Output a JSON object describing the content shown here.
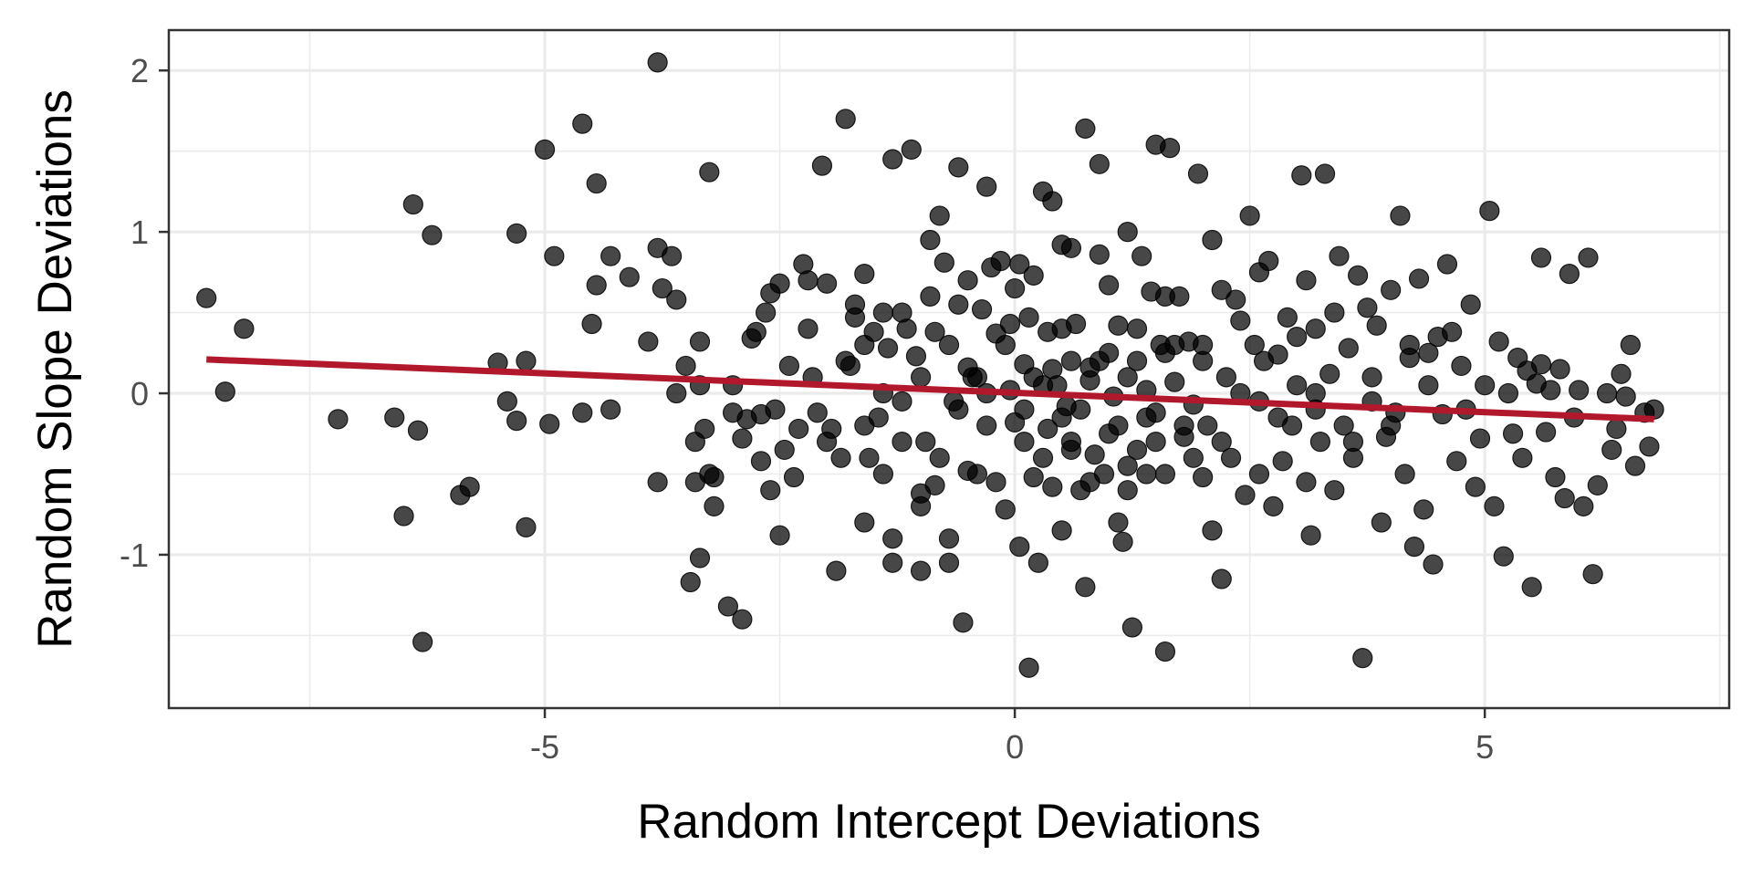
{
  "chart_data": {
    "type": "scatter",
    "title": "",
    "xlabel": "Random Intercept Deviations",
    "ylabel": "Random Slope Deviations",
    "xlim": [
      -9.0,
      7.6
    ],
    "ylim": [
      -1.95,
      2.25
    ],
    "x_ticks": [
      -5,
      0,
      5
    ],
    "x_tick_labels": [
      "-5",
      "0",
      "5"
    ],
    "y_ticks": [
      -1,
      0,
      1,
      2
    ],
    "y_tick_labels": [
      "-1",
      "0",
      "1",
      "2"
    ],
    "grid": true,
    "legend": "none",
    "colors": {
      "points": "#000000",
      "trend_line": "#b2182b",
      "grid": "#ebebeb",
      "panel_border": "#333333"
    },
    "trend_line": {
      "x": [
        -8.6,
        6.8
      ],
      "y": [
        0.21,
        -0.16
      ]
    },
    "points": [
      [
        -8.6,
        0.59
      ],
      [
        -8.4,
        0.01
      ],
      [
        -8.2,
        0.4
      ],
      [
        -7.2,
        -0.16
      ],
      [
        -6.6,
        -0.15
      ],
      [
        -6.5,
        -0.76
      ],
      [
        -6.4,
        1.17
      ],
      [
        -6.35,
        -0.23
      ],
      [
        -6.3,
        -1.54
      ],
      [
        -6.2,
        0.98
      ],
      [
        -5.9,
        -0.63
      ],
      [
        -5.8,
        -0.58
      ],
      [
        -5.5,
        0.19
      ],
      [
        -5.4,
        -0.05
      ],
      [
        -5.2,
        0.2
      ],
      [
        -5.3,
        -0.17
      ],
      [
        -5.3,
        0.99
      ],
      [
        -5.2,
        -0.83
      ],
      [
        -5.0,
        1.51
      ],
      [
        -4.9,
        0.85
      ],
      [
        -4.95,
        -0.19
      ],
      [
        -4.6,
        1.67
      ],
      [
        -4.6,
        -0.12
      ],
      [
        -4.45,
        1.3
      ],
      [
        -4.5,
        0.43
      ],
      [
        -4.45,
        0.67
      ],
      [
        -4.3,
        -0.1
      ],
      [
        -4.3,
        0.85
      ],
      [
        -4.1,
        0.72
      ],
      [
        -3.9,
        0.32
      ],
      [
        -3.8,
        0.9
      ],
      [
        -3.8,
        -0.55
      ],
      [
        -3.75,
        0.65
      ],
      [
        -3.65,
        0.85
      ],
      [
        -3.6,
        0.58
      ],
      [
        -3.8,
        2.05
      ],
      [
        -3.5,
        0.17
      ],
      [
        -3.45,
        -1.17
      ],
      [
        -3.4,
        -0.3
      ],
      [
        -3.35,
        0.32
      ],
      [
        -3.4,
        -0.55
      ],
      [
        -3.35,
        0.05
      ],
      [
        -3.3,
        -0.22
      ],
      [
        -3.25,
        1.37
      ],
      [
        -3.35,
        -1.02
      ],
      [
        -3.25,
        -0.5
      ],
      [
        -3.2,
        -0.7
      ],
      [
        -3.2,
        -0.52
      ],
      [
        -3.05,
        -1.32
      ],
      [
        -3.0,
        -0.12
      ],
      [
        -3.0,
        0.05
      ],
      [
        -2.9,
        -0.28
      ],
      [
        -2.85,
        -0.16
      ],
      [
        -2.8,
        0.34
      ],
      [
        -2.75,
        0.38
      ],
      [
        -2.7,
        -0.42
      ],
      [
        -2.7,
        -0.13
      ],
      [
        -2.65,
        0.5
      ],
      [
        -2.6,
        0.62
      ],
      [
        -2.55,
        -0.1
      ],
      [
        -2.5,
        0.68
      ],
      [
        -2.5,
        -0.88
      ],
      [
        -2.45,
        -0.35
      ],
      [
        -2.4,
        0.17
      ],
      [
        -2.35,
        -0.52
      ],
      [
        -2.3,
        -0.22
      ],
      [
        -2.25,
        0.8
      ],
      [
        -2.2,
        0.7
      ],
      [
        -2.15,
        0.1
      ],
      [
        -2.1,
        -0.12
      ],
      [
        -2.05,
        1.41
      ],
      [
        -2.0,
        0.68
      ],
      [
        -1.95,
        -0.22
      ],
      [
        -1.9,
        -1.1
      ],
      [
        -1.85,
        -0.4
      ],
      [
        -1.8,
        1.7
      ],
      [
        -1.75,
        0.17
      ],
      [
        -1.7,
        0.47
      ],
      [
        -1.6,
        0.74
      ],
      [
        -1.6,
        -0.8
      ],
      [
        -1.55,
        -0.4
      ],
      [
        -1.5,
        0.38
      ],
      [
        -1.45,
        -0.15
      ],
      [
        -1.4,
        0.5
      ],
      [
        -1.35,
        0.28
      ],
      [
        -1.3,
        1.45
      ],
      [
        -1.3,
        -1.05
      ],
      [
        -1.2,
        -0.05
      ],
      [
        -1.15,
        0.4
      ],
      [
        -1.1,
        1.51
      ],
      [
        -1.05,
        0.23
      ],
      [
        -1.0,
        -0.62
      ],
      [
        -0.95,
        -0.3
      ],
      [
        -0.9,
        0.95
      ],
      [
        -0.85,
        0.38
      ],
      [
        -0.85,
        -0.57
      ],
      [
        -0.8,
        1.1
      ],
      [
        -0.75,
        0.81
      ],
      [
        -0.7,
        -0.9
      ],
      [
        -0.65,
        -0.05
      ],
      [
        -0.6,
        1.4
      ],
      [
        -0.6,
        0.55
      ],
      [
        -0.55,
        -1.42
      ],
      [
        -0.5,
        0.16
      ],
      [
        -0.5,
        -0.48
      ],
      [
        -0.45,
        0.1
      ],
      [
        -0.4,
        -0.5
      ],
      [
        -0.35,
        0.52
      ],
      [
        -0.3,
        1.28
      ],
      [
        -0.3,
        -0.2
      ],
      [
        -0.25,
        0.78
      ],
      [
        -0.2,
        0.37
      ],
      [
        -0.2,
        -0.55
      ],
      [
        -0.15,
        0.82
      ],
      [
        -0.1,
        -0.72
      ],
      [
        -0.05,
        0.02
      ],
      [
        0.0,
        -0.18
      ],
      [
        -0.05,
        0.43
      ],
      [
        0.05,
        0.8
      ],
      [
        0.05,
        -0.95
      ],
      [
        0.1,
        -0.1
      ],
      [
        0.1,
        0.18
      ],
      [
        0.15,
        0.47
      ],
      [
        0.2,
        -0.52
      ],
      [
        0.2,
        0.73
      ],
      [
        0.25,
        -1.05
      ],
      [
        0.3,
        1.25
      ],
      [
        0.3,
        0.05
      ],
      [
        0.35,
        -0.22
      ],
      [
        0.35,
        0.38
      ],
      [
        0.4,
        -0.58
      ],
      [
        0.4,
        1.19
      ],
      [
        0.45,
        0.05
      ],
      [
        0.5,
        -0.15
      ],
      [
        0.5,
        0.92
      ],
      [
        0.55,
        -0.08
      ],
      [
        0.6,
        0.2
      ],
      [
        0.6,
        -0.3
      ],
      [
        0.65,
        0.43
      ],
      [
        0.7,
        -0.6
      ],
      [
        0.75,
        1.64
      ],
      [
        0.75,
        -1.2
      ],
      [
        0.8,
        0.16
      ],
      [
        0.8,
        0.08
      ],
      [
        0.85,
        -0.38
      ],
      [
        0.9,
        1.42
      ],
      [
        0.9,
        0.86
      ],
      [
        0.95,
        -0.5
      ],
      [
        1.0,
        0.67
      ],
      [
        1.0,
        0.25
      ],
      [
        1.05,
        -0.02
      ],
      [
        1.1,
        0.42
      ],
      [
        1.1,
        -0.8
      ],
      [
        1.15,
        -0.92
      ],
      [
        1.2,
        1.0
      ],
      [
        1.2,
        0.1
      ],
      [
        1.25,
        -1.45
      ],
      [
        1.3,
        0.2
      ],
      [
        1.3,
        -0.35
      ],
      [
        1.35,
        0.85
      ],
      [
        1.4,
        0.02
      ],
      [
        1.4,
        -0.5
      ],
      [
        1.45,
        0.63
      ],
      [
        1.5,
        1.54
      ],
      [
        1.5,
        -0.12
      ],
      [
        1.55,
        0.3
      ],
      [
        1.6,
        -1.6
      ],
      [
        1.6,
        -0.5
      ],
      [
        1.65,
        1.52
      ],
      [
        1.7,
        0.07
      ],
      [
        1.75,
        0.6
      ],
      [
        1.8,
        -0.27
      ],
      [
        1.85,
        0.32
      ],
      [
        1.9,
        -0.07
      ],
      [
        1.95,
        1.36
      ],
      [
        2.0,
        -0.52
      ],
      [
        2.0,
        0.2
      ],
      [
        2.05,
        -0.2
      ],
      [
        2.1,
        0.95
      ],
      [
        2.2,
        -1.15
      ],
      [
        2.2,
        0.64
      ],
      [
        2.25,
        0.1
      ],
      [
        2.3,
        -0.4
      ],
      [
        2.35,
        0.58
      ],
      [
        2.4,
        0.0
      ],
      [
        2.45,
        -0.63
      ],
      [
        2.5,
        1.1
      ],
      [
        2.55,
        0.3
      ],
      [
        2.6,
        -0.05
      ],
      [
        2.65,
        0.2
      ],
      [
        2.7,
        0.82
      ],
      [
        2.75,
        -0.7
      ],
      [
        2.8,
        0.24
      ],
      [
        2.85,
        -0.42
      ],
      [
        2.9,
        0.47
      ],
      [
        2.95,
        -0.2
      ],
      [
        3.0,
        0.05
      ],
      [
        3.05,
        1.35
      ],
      [
        3.1,
        0.7
      ],
      [
        3.15,
        -0.88
      ],
      [
        3.2,
        0.4
      ],
      [
        3.25,
        -0.3
      ],
      [
        3.3,
        1.36
      ],
      [
        3.35,
        0.12
      ],
      [
        3.4,
        -0.6
      ],
      [
        3.45,
        0.85
      ],
      [
        3.5,
        -0.2
      ],
      [
        3.55,
        0.28
      ],
      [
        3.6,
        -0.4
      ],
      [
        3.65,
        0.73
      ],
      [
        3.7,
        -1.64
      ],
      [
        3.75,
        0.53
      ],
      [
        3.8,
        -0.05
      ],
      [
        3.85,
        0.42
      ],
      [
        3.9,
        -0.8
      ],
      [
        3.95,
        -0.27
      ],
      [
        4.0,
        0.64
      ],
      [
        4.05,
        -0.12
      ],
      [
        4.1,
        1.1
      ],
      [
        4.15,
        -0.5
      ],
      [
        4.2,
        0.22
      ],
      [
        4.25,
        -0.95
      ],
      [
        4.3,
        0.71
      ],
      [
        4.35,
        -0.72
      ],
      [
        4.4,
        0.05
      ],
      [
        4.45,
        -1.06
      ],
      [
        4.5,
        0.35
      ],
      [
        4.55,
        -0.13
      ],
      [
        4.6,
        0.8
      ],
      [
        4.65,
        0.38
      ],
      [
        4.7,
        -0.42
      ],
      [
        4.75,
        0.17
      ],
      [
        4.8,
        -0.1
      ],
      [
        4.85,
        0.55
      ],
      [
        4.9,
        -0.58
      ],
      [
        4.95,
        -0.28
      ],
      [
        5.0,
        0.05
      ],
      [
        5.05,
        1.13
      ],
      [
        5.1,
        -0.7
      ],
      [
        5.15,
        0.32
      ],
      [
        5.2,
        -1.01
      ],
      [
        5.25,
        0.0
      ],
      [
        5.3,
        -0.25
      ],
      [
        5.35,
        0.22
      ],
      [
        5.4,
        -0.4
      ],
      [
        5.45,
        0.14
      ],
      [
        5.5,
        -1.2
      ],
      [
        5.55,
        0.06
      ],
      [
        5.6,
        0.18
      ],
      [
        5.65,
        -0.24
      ],
      [
        5.7,
        0.02
      ],
      [
        5.75,
        -0.52
      ],
      [
        5.8,
        0.15
      ],
      [
        5.85,
        -0.65
      ],
      [
        5.9,
        0.74
      ],
      [
        5.95,
        -0.15
      ],
      [
        6.0,
        0.02
      ],
      [
        6.05,
        -0.7
      ],
      [
        6.1,
        0.84
      ],
      [
        6.15,
        -1.12
      ],
      [
        6.2,
        -0.57
      ],
      [
        6.3,
        0.0
      ],
      [
        6.35,
        -0.35
      ],
      [
        6.4,
        -0.22
      ],
      [
        6.45,
        0.12
      ],
      [
        6.5,
        -0.02
      ],
      [
        6.55,
        0.3
      ],
      [
        6.6,
        -0.45
      ],
      [
        6.7,
        -0.12
      ],
      [
        6.75,
        -0.33
      ],
      [
        -1.7,
        0.55
      ],
      [
        -1.6,
        0.3
      ],
      [
        -1.4,
        0.0
      ],
      [
        -1.2,
        0.5
      ],
      [
        -1.0,
        0.1
      ],
      [
        -0.9,
        0.6
      ],
      [
        -0.7,
        0.3
      ],
      [
        -0.5,
        0.7
      ],
      [
        -0.3,
        0.0
      ],
      [
        -0.1,
        0.3
      ],
      [
        0.1,
        -0.3
      ],
      [
        0.3,
        -0.4
      ],
      [
        0.5,
        0.4
      ],
      [
        0.7,
        -0.1
      ],
      [
        0.9,
        0.2
      ],
      [
        1.1,
        -0.2
      ],
      [
        1.3,
        0.4
      ],
      [
        1.5,
        -0.3
      ],
      [
        1.7,
        0.3
      ],
      [
        1.9,
        -0.4
      ],
      [
        -2.2,
        0.4
      ],
      [
        -2.0,
        -0.3
      ],
      [
        -1.8,
        0.2
      ],
      [
        -1.6,
        -0.2
      ],
      [
        -1.4,
        -0.5
      ],
      [
        -1.2,
        -0.3
      ],
      [
        -1.0,
        -0.7
      ],
      [
        -0.8,
        -0.4
      ],
      [
        -0.6,
        -0.1
      ],
      [
        -0.4,
        0.1
      ],
      [
        0.2,
        0.1
      ],
      [
        0.4,
        0.15
      ],
      [
        0.6,
        -0.35
      ],
      [
        0.8,
        -0.55
      ],
      [
        1.0,
        -0.25
      ],
      [
        1.2,
        -0.6
      ],
      [
        1.4,
        -0.15
      ],
      [
        1.6,
        0.25
      ],
      [
        1.8,
        -0.2
      ],
      [
        2.0,
        0.3
      ],
      [
        2.2,
        -0.3
      ],
      [
        2.4,
        0.45
      ],
      [
        2.6,
        -0.5
      ],
      [
        2.8,
        -0.15
      ],
      [
        3.0,
        0.35
      ],
      [
        3.2,
        -0.1
      ],
      [
        3.4,
        0.5
      ],
      [
        3.6,
        -0.3
      ],
      [
        3.8,
        0.1
      ],
      [
        4.0,
        -0.2
      ],
      [
        -3.6,
        0.0
      ],
      [
        -2.6,
        -0.6
      ],
      [
        -1.3,
        -0.9
      ],
      [
        -0.7,
        -1.05
      ],
      [
        0.0,
        0.65
      ],
      [
        0.6,
        0.9
      ],
      [
        1.6,
        0.6
      ],
      [
        2.6,
        0.75
      ],
      [
        3.2,
        0.0
      ],
      [
        4.2,
        0.3
      ],
      [
        -2.9,
        -1.4
      ],
      [
        -1.0,
        -1.1
      ],
      [
        0.15,
        -1.7
      ],
      [
        0.5,
        -0.85
      ],
      [
        1.2,
        -0.45
      ],
      [
        2.1,
        -0.85
      ],
      [
        3.1,
        -0.55
      ],
      [
        4.4,
        0.25
      ],
      [
        5.6,
        0.84
      ],
      [
        6.8,
        -0.1
      ]
    ]
  }
}
